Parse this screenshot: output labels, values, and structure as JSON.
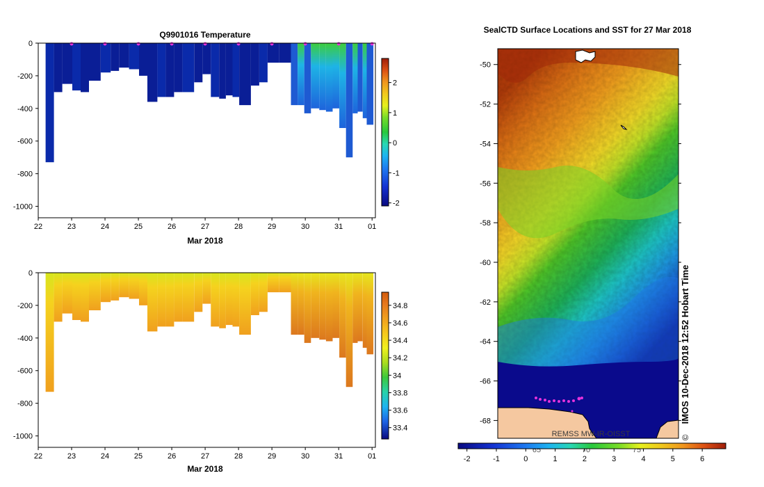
{
  "chart_data": [
    {
      "type": "heatmap",
      "title": "Q9901016  Temperature",
      "xlabel": "Mar 2018",
      "x_ticks": [
        "22",
        "23",
        "24",
        "25",
        "26",
        "27",
        "28",
        "29",
        "30",
        "31",
        "01"
      ],
      "ylim": [
        -1070,
        0
      ],
      "y_ticks": [
        0,
        -200,
        -400,
        -600,
        -800,
        -1000
      ],
      "colorbar": {
        "min": -2.1,
        "max": 2.8,
        "ticks": [
          2,
          1,
          0,
          -1,
          -2
        ]
      },
      "profile_days": [
        22.35,
        22.6,
        22.85,
        23.15,
        23.4,
        23.65,
        24.0,
        24.3,
        24.55,
        24.85,
        25.15,
        25.4,
        25.7,
        25.95,
        26.2,
        26.45,
        26.8,
        27.05,
        27.3,
        27.55,
        27.75,
        27.95,
        28.15,
        28.5,
        28.75,
        29.0,
        29.35,
        29.7,
        29.9,
        30.1,
        30.3,
        30.55,
        30.75,
        30.95,
        31.15,
        31.35,
        31.55,
        31.7,
        31.85,
        31.97
      ],
      "profile_bottoms": [
        -730,
        -300,
        -250,
        -290,
        -300,
        -230,
        -180,
        -170,
        -150,
        -160,
        -200,
        -360,
        -330,
        -330,
        -300,
        -300,
        -240,
        -190,
        -330,
        -340,
        -320,
        -330,
        -380,
        -260,
        -240,
        -120,
        -120,
        -380,
        -380,
        -430,
        -400,
        -410,
        -420,
        -400,
        -520,
        -700,
        -430,
        -420,
        -460,
        -500
      ],
      "surface_markers": [
        23,
        24,
        25,
        26,
        27,
        28,
        29,
        30,
        31,
        32
      ]
    },
    {
      "type": "heatmap",
      "title": "",
      "xlabel": "Mar 2018",
      "x_ticks": [
        "22",
        "23",
        "24",
        "25",
        "26",
        "27",
        "28",
        "29",
        "30",
        "31",
        "01"
      ],
      "ylim": [
        -1070,
        0
      ],
      "y_ticks": [
        0,
        -200,
        -400,
        -600,
        -800,
        -1000
      ],
      "colorbar": {
        "min": 33.27,
        "max": 34.95,
        "ticks": [
          34.8,
          34.6,
          34.4,
          34.2,
          34,
          33.8,
          33.6,
          33.4
        ]
      }
    },
    {
      "type": "heatmap",
      "title": "SealCTD Surface Locations and SST for 27 Mar 2018",
      "ylim": [
        -68.9,
        -49.2
      ],
      "y_ticks": [
        -50,
        -52,
        -54,
        -56,
        -58,
        -60,
        -62,
        -64,
        -66,
        -68
      ],
      "colorbar": {
        "min": -2.3,
        "max": 6.8,
        "ticks": [
          -2,
          -1,
          0,
          1,
          2,
          3,
          4,
          5,
          6
        ]
      },
      "longitude_ticks": [
        "65",
        "70",
        "75"
      ]
    }
  ],
  "sst_credit": "REMSS MW-IR-OISST",
  "timestamp": "IMOS 10-Dec-2018 12:52 Hobart Time",
  "copyright": "©"
}
